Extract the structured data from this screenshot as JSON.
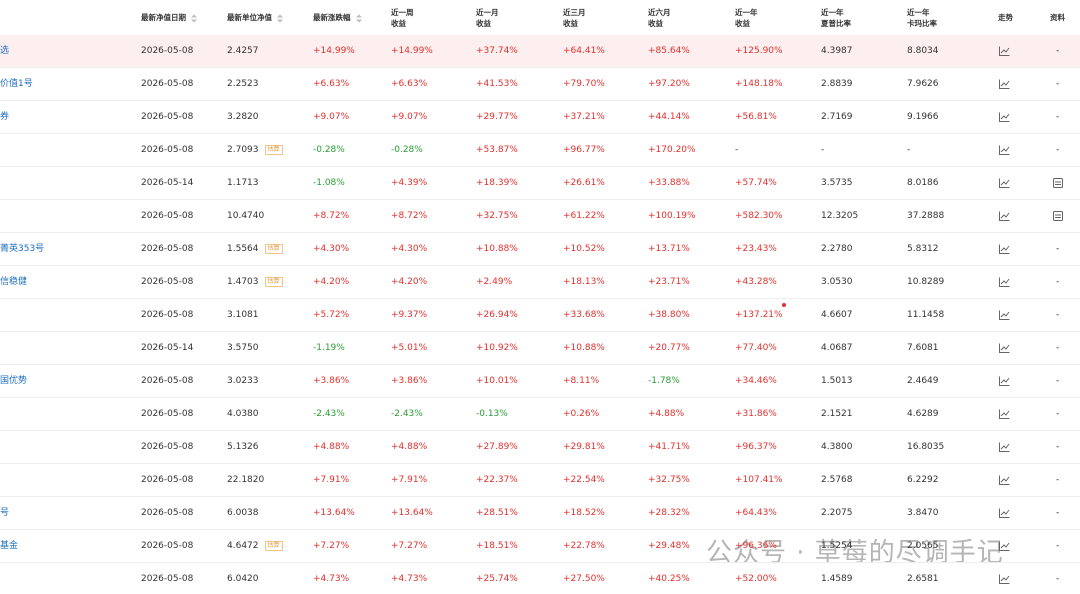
{
  "header": {
    "columns": [
      "最新净值日期",
      "最新单位净值",
      "最新涨跌幅",
      "近一周\n收益",
      "近一月\n收益",
      "近三月\n收益",
      "近六月\n收益",
      "近一年\n收益",
      "近一年\n夏普比率",
      "近一年\n卡玛比率",
      "走势",
      "资料"
    ]
  },
  "rows": [
    {
      "name": "选",
      "date": "2026-05-08",
      "nav": "2.4257",
      "change": "+14.99%",
      "week": "+14.99%",
      "month": "+37.74%",
      "m3": "+64.41%",
      "m6": "+85.64%",
      "y1": "+125.90%",
      "sharpe": "4.3987",
      "calmar": "8.8034",
      "info": "-"
    },
    {
      "name": "价值1号",
      "date": "2026-05-08",
      "nav": "2.2523",
      "change": "+6.63%",
      "week": "+6.63%",
      "month": "+41.53%",
      "m3": "+79.70%",
      "m6": "+97.20%",
      "y1": "+148.18%",
      "sharpe": "2.8839",
      "calmar": "7.9626",
      "info": "-"
    },
    {
      "name": "券",
      "date": "2026-05-08",
      "nav": "3.2820",
      "change": "+9.07%",
      "week": "+9.07%",
      "month": "+29.77%",
      "m3": "+37.21%",
      "m6": "+44.14%",
      "y1": "+56.81%",
      "sharpe": "2.7169",
      "calmar": "9.1966",
      "info": "-"
    },
    {
      "date": "2026-05-08",
      "nav": "2.7093",
      "badge": "估算",
      "change": "-0.28%",
      "week": "-0.28%",
      "month": "+53.87%",
      "m3": "+96.77%",
      "m6": "+170.20%",
      "y1": "-",
      "sharpe": "-",
      "calmar": "-",
      "info": "-"
    },
    {
      "date": "2026-05-14",
      "nav": "1.1713",
      "change": "-1.08%",
      "week": "+4.39%",
      "month": "+18.39%",
      "m3": "+26.61%",
      "m6": "+33.88%",
      "y1": "+57.74%",
      "sharpe": "3.5735",
      "calmar": "8.0186",
      "doc_icon": true
    },
    {
      "date": "2026-05-08",
      "nav": "10.4740",
      "change": "+8.72%",
      "week": "+8.72%",
      "month": "+32.75%",
      "m3": "+61.22%",
      "m6": "+100.19%",
      "y1": "+582.30%",
      "sharpe": "12.3205",
      "calmar": "37.2888",
      "doc_icon": true
    },
    {
      "name": "菁英353号",
      "date": "2026-05-08",
      "nav": "1.5564",
      "badge": "估算",
      "change": "+4.30%",
      "week": "+4.30%",
      "month": "+10.88%",
      "m3": "+10.52%",
      "m6": "+13.71%",
      "y1": "+23.43%",
      "sharpe": "2.2780",
      "calmar": "5.8312",
      "info": "-"
    },
    {
      "name": "信稳健",
      "date": "2026-05-08",
      "nav": "1.4703",
      "badge": "估算",
      "change": "+4.20%",
      "week": "+4.20%",
      "month": "+2.49%",
      "m3": "+18.13%",
      "m6": "+23.71%",
      "y1": "+43.28%",
      "sharpe": "3.0530",
      "calmar": "10.8289",
      "info": "-"
    },
    {
      "date": "2026-05-08",
      "nav": "3.1081",
      "change": "+5.72%",
      "week": "+9.37%",
      "month": "+26.94%",
      "m3": "+33.68%",
      "m6": "+38.80%",
      "y1": "+137.21%",
      "sharpe": "4.6607",
      "calmar": "11.1458",
      "info": "-"
    },
    {
      "date": "2026-05-14",
      "nav": "3.5750",
      "change": "-1.19%",
      "week": "+5.01%",
      "month": "+10.92%",
      "m3": "+10.88%",
      "m6": "+20.77%",
      "y1": "+77.40%",
      "sharpe": "4.0687",
      "calmar": "7.6081",
      "info": "-"
    },
    {
      "name": "国优势",
      "date": "2026-05-08",
      "nav": "3.0233",
      "change": "+3.86%",
      "week": "+3.86%",
      "month": "+10.01%",
      "m3": "+8.11%",
      "m6": "-1.78%",
      "y1": "+34.46%",
      "sharpe": "1.5013",
      "calmar": "2.4649",
      "info": "-"
    },
    {
      "date": "2026-05-08",
      "nav": "4.0380",
      "change": "-2.43%",
      "week": "-2.43%",
      "month": "-0.13%",
      "m3": "+0.26%",
      "m6": "+4.88%",
      "y1": "+31.86%",
      "sharpe": "2.1521",
      "calmar": "4.6289",
      "info": "-"
    },
    {
      "date": "2026-05-08",
      "nav": "5.1326",
      "change": "+4.88%",
      "week": "+4.88%",
      "month": "+27.89%",
      "m3": "+29.81%",
      "m6": "+41.71%",
      "y1": "+96.37%",
      "sharpe": "4.3800",
      "calmar": "16.8035",
      "info": "-"
    },
    {
      "date": "2026-05-08",
      "nav": "22.1820",
      "change": "+7.91%",
      "week": "+7.91%",
      "month": "+22.37%",
      "m3": "+22.54%",
      "m6": "+32.75%",
      "y1": "+107.41%",
      "sharpe": "2.5768",
      "calmar": "6.2292",
      "info": "-"
    },
    {
      "name": "号",
      "date": "2026-05-08",
      "nav": "6.0038",
      "change": "+13.64%",
      "week": "+13.64%",
      "month": "+28.51%",
      "m3": "+18.52%",
      "m6": "+28.32%",
      "y1": "+64.43%",
      "sharpe": "2.2075",
      "calmar": "3.8470",
      "info": "-"
    },
    {
      "name": "基金",
      "date": "2026-05-08",
      "nav": "4.6472",
      "badge": "估算",
      "change": "+7.27%",
      "week": "+7.27%",
      "month": "+18.51%",
      "m3": "+22.78%",
      "m6": "+29.48%",
      "y1": "+96.36%",
      "sharpe": "1.5254",
      "calmar": "2.0565",
      "info": "-"
    },
    {
      "date": "2026-05-08",
      "nav": "6.0420",
      "change": "+4.73%",
      "week": "+4.73%",
      "month": "+25.74%",
      "m3": "+27.50%",
      "m6": "+40.25%",
      "y1": "+52.00%",
      "sharpe": "1.4589",
      "calmar": "2.6581",
      "info": "-"
    }
  ],
  "watermark": "公众号 · 草莓的尽调手记"
}
